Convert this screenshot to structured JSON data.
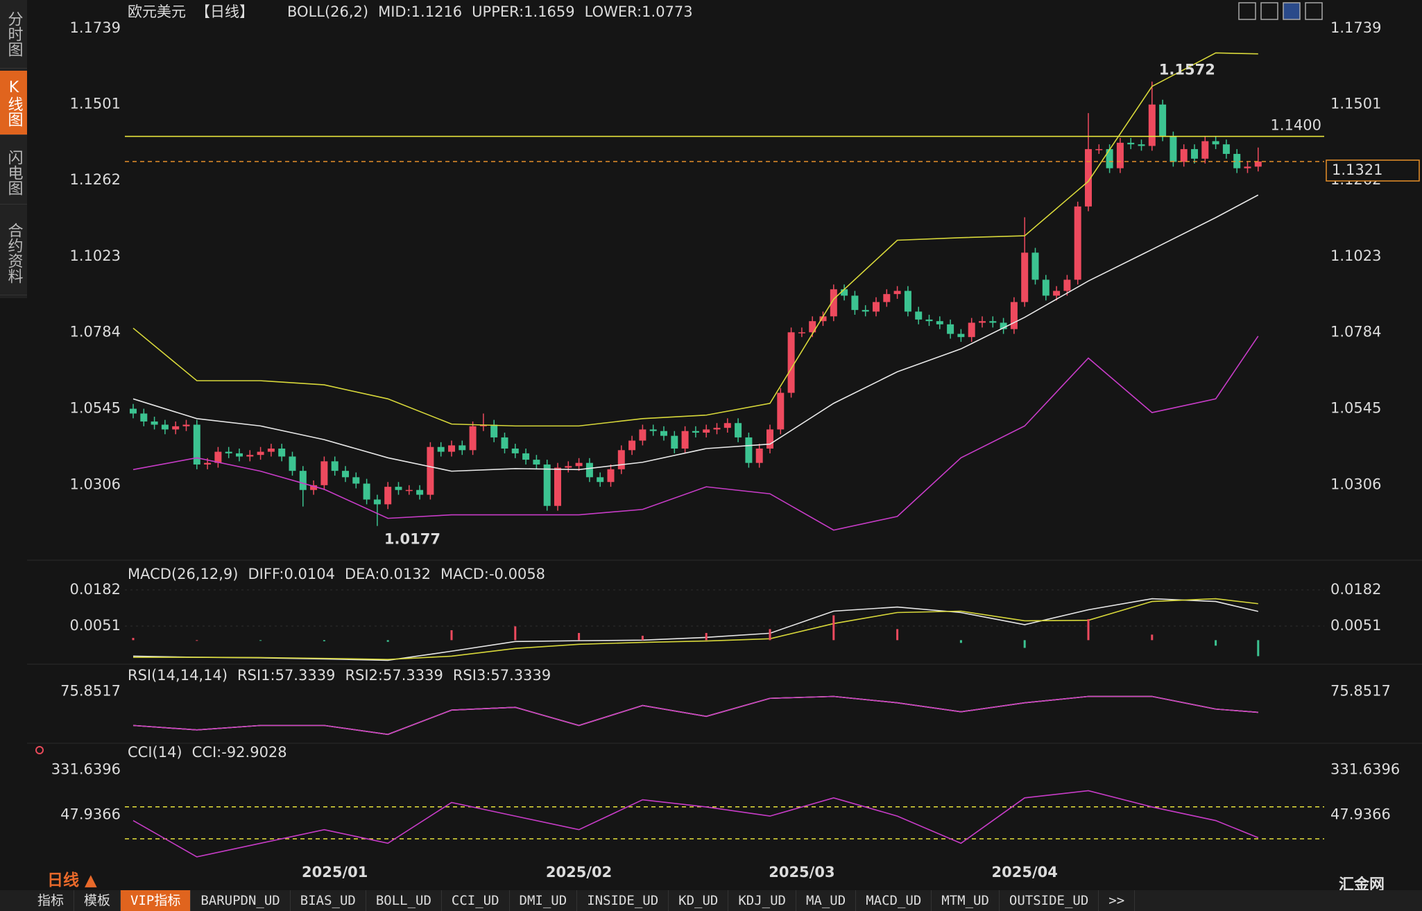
{
  "sidebar": [
    "分时图",
    "K线图",
    "闪电图",
    "合约资料"
  ],
  "period_toggle": "日线 ▲",
  "toolbar": [
    "指标",
    "模板",
    "VIP指标",
    "BARUPDN_UD",
    "BIAS_UD",
    "BOLL_UD",
    "CCI_UD",
    "DMI_UD",
    "INSIDE_UD",
    "KD_UD",
    "KDJ_UD",
    "MA_UD",
    "MACD_UD",
    "MTM_UD",
    "OUTSIDE_UD",
    ">>"
  ],
  "logo": "汇金网",
  "chart_data": [
    {
      "type": "candlestick",
      "title": "欧元美元",
      "period": "【日线】",
      "label": "BOLL(26,2)",
      "up_color": "#ee4a5e",
      "down_color": "#3cc391",
      "categories": [
        null,
        null,
        null,
        null,
        null,
        null,
        null,
        null,
        null,
        null,
        null,
        null,
        null,
        null,
        null,
        null,
        null,
        null,
        null,
        "2025/01",
        null,
        null,
        null,
        null,
        null,
        null,
        null,
        null,
        null,
        null,
        null,
        null,
        null,
        null,
        null,
        null,
        null,
        null,
        null,
        null,
        null,
        null,
        "2025/02",
        null,
        null,
        null,
        null,
        null,
        null,
        null,
        null,
        null,
        null,
        null,
        null,
        null,
        null,
        null,
        null,
        null,
        null,
        null,
        null,
        "2025/03",
        null,
        null,
        null,
        null,
        null,
        null,
        null,
        null,
        null,
        null,
        null,
        null,
        null,
        null,
        null,
        null,
        null,
        null,
        null,
        null,
        "2025/04",
        null,
        null,
        null,
        null,
        null,
        null,
        null,
        null,
        null,
        null,
        null,
        null,
        null,
        null,
        null,
        null,
        null,
        null,
        null,
        null,
        null,
        null
      ],
      "open": [
        1.0545,
        1.053,
        1.0505,
        1.0495,
        1.048,
        1.049,
        1.0495,
        1.037,
        1.0375,
        1.041,
        1.0405,
        1.0395,
        1.04,
        1.041,
        1.042,
        1.0395,
        1.035,
        1.029,
        1.0305,
        1.038,
        1.035,
        1.033,
        1.031,
        1.026,
        1.0245,
        1.03,
        1.029,
        1.029,
        1.0275,
        1.0425,
        1.041,
        1.043,
        1.0415,
        1.049,
        1.0495,
        1.0455,
        1.042,
        1.0405,
        1.0385,
        1.037,
        1.024,
        1.036,
        1.0365,
        1.0375,
        1.033,
        1.0315,
        1.0355,
        1.0415,
        1.0445,
        1.048,
        1.0475,
        1.046,
        1.042,
        1.0475,
        1.047,
        1.048,
        1.0485,
        1.05,
        1.0455,
        1.0375,
        1.042,
        1.048,
        1.0595,
        1.0785,
        1.0785,
        1.082,
        1.0835,
        1.092,
        1.09,
        1.0855,
        1.085,
        1.088,
        1.0905,
        1.0915,
        1.085,
        1.0825,
        1.082,
        1.081,
        1.078,
        1.077,
        1.0815,
        1.082,
        1.0815,
        1.0795,
        1.088,
        1.1035,
        1.095,
        1.09,
        1.0915,
        1.095,
        1.118,
        1.136,
        1.136,
        1.13,
        1.138,
        1.1375,
        1.137,
        1.15,
        1.14,
        1.132,
        1.136,
        1.133,
        1.1385,
        1.1375,
        1.1345,
        1.13,
        1.1305
      ],
      "high": [
        1.056,
        1.0545,
        1.052,
        1.051,
        1.0505,
        1.051,
        1.051,
        1.039,
        1.0425,
        1.0425,
        1.042,
        1.0415,
        1.0425,
        1.0435,
        1.0435,
        1.041,
        1.0365,
        1.032,
        1.0395,
        1.0395,
        1.0365,
        1.0345,
        1.0325,
        1.0275,
        1.0315,
        1.0315,
        1.0305,
        1.0305,
        1.044,
        1.044,
        1.0445,
        1.0445,
        1.0505,
        1.053,
        1.051,
        1.047,
        1.0435,
        1.042,
        1.04,
        1.0385,
        1.0375,
        1.038,
        1.039,
        1.039,
        1.0345,
        1.037,
        1.043,
        1.046,
        1.0495,
        1.0495,
        1.049,
        1.0475,
        1.049,
        1.049,
        1.0495,
        1.05,
        1.0515,
        1.0515,
        1.047,
        1.0435,
        1.0495,
        1.061,
        1.08,
        1.08,
        1.0835,
        1.085,
        1.0935,
        1.0935,
        1.0915,
        1.087,
        1.0895,
        1.092,
        1.093,
        1.093,
        1.0865,
        1.084,
        1.0835,
        1.0825,
        1.0795,
        1.083,
        1.0835,
        1.0835,
        1.083,
        1.0895,
        1.1146,
        1.105,
        1.0965,
        1.093,
        1.0965,
        1.1195,
        1.1473,
        1.1375,
        1.1375,
        1.1395,
        1.1395,
        1.139,
        1.1572,
        1.1515,
        1.1415,
        1.1375,
        1.1375,
        1.14,
        1.14,
        1.139,
        1.136,
        1.132,
        1.1365
      ],
      "low": [
        1.0515,
        1.049,
        1.048,
        1.0465,
        1.0465,
        1.0475,
        1.0355,
        1.0355,
        1.036,
        1.039,
        1.038,
        1.038,
        1.0385,
        1.0395,
        1.038,
        1.0335,
        1.0238,
        1.0275,
        1.029,
        1.0335,
        1.0315,
        1.0295,
        1.0245,
        1.0177,
        1.023,
        1.0275,
        1.0275,
        1.026,
        1.026,
        1.0395,
        1.0395,
        1.04,
        1.04,
        1.0475,
        1.044,
        1.0405,
        1.039,
        1.037,
        1.0355,
        1.0225,
        1.0225,
        1.0345,
        1.035,
        1.0315,
        1.03,
        1.03,
        1.034,
        1.04,
        1.043,
        1.046,
        1.0445,
        1.0405,
        1.0405,
        1.0455,
        1.0455,
        1.0465,
        1.047,
        1.044,
        1.036,
        1.036,
        1.0405,
        1.0465,
        1.058,
        1.077,
        1.077,
        1.0805,
        1.082,
        1.0885,
        1.084,
        1.0835,
        1.0835,
        1.0865,
        1.089,
        1.0835,
        1.081,
        1.0805,
        1.0795,
        1.0765,
        1.0755,
        1.0755,
        1.08,
        1.08,
        1.078,
        1.078,
        1.0865,
        1.0935,
        1.0885,
        1.0885,
        1.09,
        1.0935,
        1.1165,
        1.1345,
        1.1285,
        1.1285,
        1.136,
        1.1355,
        1.1355,
        1.1385,
        1.1305,
        1.1305,
        1.1315,
        1.1315,
        1.136,
        1.133,
        1.1285,
        1.1285,
        1.129
      ],
      "close": [
        1.053,
        1.0505,
        1.0495,
        1.048,
        1.049,
        1.0495,
        1.037,
        1.0375,
        1.041,
        1.0405,
        1.0395,
        1.04,
        1.041,
        1.042,
        1.0395,
        1.035,
        1.029,
        1.0305,
        1.038,
        1.035,
        1.033,
        1.031,
        1.026,
        1.0245,
        1.03,
        1.029,
        1.029,
        1.0275,
        1.0425,
        1.041,
        1.043,
        1.0415,
        1.049,
        1.0495,
        1.0455,
        1.042,
        1.0405,
        1.0385,
        1.037,
        1.024,
        1.036,
        1.0365,
        1.0375,
        1.033,
        1.0315,
        1.0355,
        1.0415,
        1.0445,
        1.048,
        1.0475,
        1.046,
        1.042,
        1.0475,
        1.047,
        1.048,
        1.0485,
        1.05,
        1.0455,
        1.0375,
        1.042,
        1.048,
        1.0595,
        1.0785,
        1.0785,
        1.082,
        1.0835,
        1.092,
        1.09,
        1.0855,
        1.085,
        1.088,
        1.0905,
        1.0915,
        1.085,
        1.0825,
        1.082,
        1.081,
        1.078,
        1.077,
        1.0815,
        1.082,
        1.0815,
        1.0795,
        1.088,
        1.1035,
        1.095,
        1.09,
        1.0915,
        1.095,
        1.118,
        1.136,
        1.136,
        1.13,
        1.138,
        1.1375,
        1.137,
        1.15,
        1.14,
        1.132,
        1.136,
        1.133,
        1.1385,
        1.1375,
        1.1345,
        1.13,
        1.1305,
        1.1321
      ],
      "x": [
        0,
        6,
        12,
        18,
        24,
        30,
        36,
        42,
        48,
        54,
        60,
        66,
        72,
        78,
        84,
        90,
        96,
        102,
        106
      ],
      "series": [
        {
          "name": "MID:1.1216",
          "color": "#e8e8e8",
          "values": [
            1.0576,
            1.0514,
            1.0491,
            1.0448,
            1.0391,
            1.0349,
            1.0357,
            1.0354,
            1.0377,
            1.042,
            1.0434,
            1.0562,
            1.0661,
            1.0733,
            1.0832,
            1.0946,
            1.1045,
            1.1145,
            1.1216
          ]
        },
        {
          "name": "UPPER:1.1659",
          "color": "#d8d83a",
          "values": [
            1.0798,
            1.0633,
            1.0633,
            1.062,
            1.0576,
            1.0497,
            1.0491,
            1.0491,
            1.0514,
            1.0525,
            1.0562,
            1.0889,
            1.1074,
            1.1082,
            1.1088,
            1.1259,
            1.1557,
            1.1662,
            1.1659
          ]
        },
        {
          "name": "LOWER:1.0773",
          "color": "#c83cc8",
          "values": [
            1.0354,
            1.0391,
            1.0349,
            1.0292,
            1.0201,
            1.0212,
            1.0212,
            1.0212,
            1.0229,
            1.03,
            1.0278,
            1.0164,
            1.0207,
            1.0391,
            1.0491,
            1.0704,
            1.0533,
            1.0576,
            1.0773
          ]
        }
      ],
      "hlines": [
        {
          "value": 1.14,
          "label": "1.1400",
          "color": "#e6e23c",
          "style": "solid"
        },
        {
          "value": 1.1321,
          "label": "1.1321",
          "color": "#e8902a",
          "style": "dashed",
          "boxed": true
        }
      ],
      "annotations": [
        {
          "value": 1.1572,
          "label": "1.1572",
          "color": "#e84a5a"
        },
        {
          "value": 1.0177,
          "label": "1.0177",
          "color": "#3cc391"
        }
      ],
      "ylim": [
        1.0087,
        1.1765
      ],
      "yticks": [
        1.1739,
        1.1501,
        1.1262,
        1.1023,
        1.0784,
        1.0545,
        1.0306
      ],
      "grid": false
    },
    {
      "type": "line",
      "label": "MACD(26,12,9)",
      "up_color": "#ee4a5e",
      "down_color": "#3cc391",
      "x": [
        0,
        6,
        12,
        18,
        24,
        30,
        36,
        42,
        48,
        54,
        60,
        66,
        72,
        78,
        84,
        90,
        96,
        102,
        106
      ],
      "series": [
        {
          "name": "DIFF:0.0104",
          "color": "#e8e8e8",
          "values": [
            -0.0058,
            -0.0062,
            -0.0064,
            -0.0068,
            -0.0073,
            -0.004,
            -0.0005,
            -0.0002,
            0.0,
            0.001,
            0.0025,
            0.0105,
            0.012,
            0.01,
            0.0056,
            0.011,
            0.015,
            0.014,
            0.0104
          ]
        },
        {
          "name": "DEA:0.0132",
          "color": "#d8d83a",
          "values": [
            -0.0062,
            -0.0062,
            -0.0063,
            -0.0066,
            -0.007,
            -0.0058,
            -0.003,
            -0.0015,
            -0.0008,
            -0.0003,
            0.0005,
            0.006,
            0.01,
            0.0105,
            0.007,
            0.0072,
            0.014,
            0.015,
            0.0132
          ]
        },
        {
          "name": "MACD:-0.0058",
          "color": "#c83cc8",
          "type": "bar",
          "values": [
            0.0008,
            0.0,
            -0.0002,
            -0.0004,
            -0.0006,
            0.0036,
            0.005,
            0.0026,
            0.0016,
            0.0026,
            0.004,
            0.009,
            0.004,
            -0.001,
            -0.0028,
            0.0076,
            0.002,
            -0.002,
            -0.0058
          ]
        }
      ],
      "ylim": [
        -0.0077,
        0.0277
      ],
      "yticks": [
        0.0182,
        0.0051
      ],
      "grid": true
    },
    {
      "type": "line",
      "label": "RSI(14,14,14)",
      "x": [
        0,
        6,
        12,
        18,
        24,
        30,
        36,
        42,
        48,
        54,
        60,
        66,
        72,
        78,
        84,
        90,
        96,
        102,
        106
      ],
      "series": [
        {
          "name": "RSI1:57.3339",
          "color": "#e8e8e8",
          "values": [
            45.6,
            41.6,
            45.6,
            45.6,
            37.6,
            59.3,
            61.8,
            45.6,
            63.4,
            53.7,
            69.8,
            71.5,
            65.8,
            57.8,
            65.8,
            71.5,
            71.5,
            60.2,
            57.3339
          ]
        },
        {
          "name": "RSI2:57.3339",
          "color": "#d8d83a",
          "values": [
            45.6,
            41.6,
            45.6,
            45.6,
            37.6,
            59.3,
            61.8,
            45.6,
            63.4,
            53.7,
            69.8,
            71.5,
            65.8,
            57.8,
            65.8,
            71.5,
            71.5,
            60.2,
            57.3339
          ]
        },
        {
          "name": "RSI3:57.3339",
          "color": "#c83cc8",
          "values": [
            45.6,
            41.6,
            45.6,
            45.6,
            37.6,
            59.3,
            61.8,
            45.6,
            63.4,
            53.7,
            69.8,
            71.5,
            65.8,
            57.8,
            65.8,
            71.5,
            71.5,
            60.2,
            57.3339
          ]
        }
      ],
      "ylim": [
        31.6,
        98.4
      ],
      "yticks": [
        75.8517
      ],
      "grid": false
    },
    {
      "type": "line",
      "label": "CCI(14)",
      "x": [
        0,
        6,
        12,
        18,
        24,
        30,
        36,
        42,
        48,
        54,
        60,
        66,
        72,
        78,
        84,
        90,
        96,
        102,
        106
      ],
      "series": [
        {
          "name": "CCI:-92.9028",
          "color": "#c83cc8",
          "values": [
            13.9,
            -213,
            -128,
            -43,
            -128,
            127,
            42,
            -43,
            144,
            99,
            42,
            156,
            42,
            -128,
            156,
            201,
            99,
            14,
            -92.9028
          ]
        }
      ],
      "reference_lines": [
        100,
        -100
      ],
      "ylim": [
        -269.8,
        484.8
      ],
      "yticks": [
        331.6396,
        47.9366
      ],
      "grid": false
    }
  ]
}
